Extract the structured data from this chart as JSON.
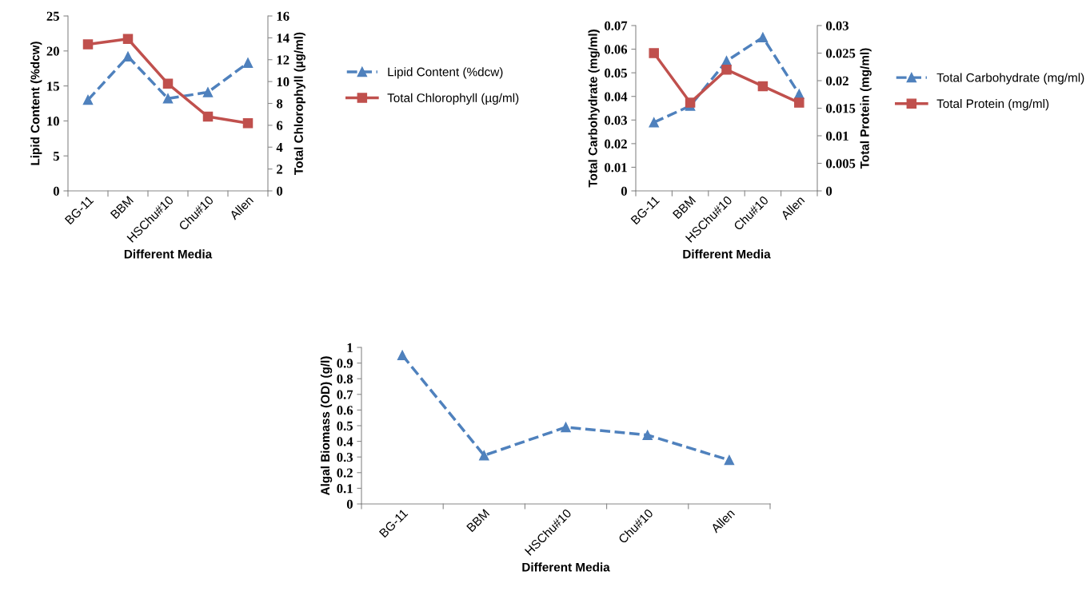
{
  "chart_data": [
    {
      "type": "line",
      "categories": [
        "BG-11",
        "BBM",
        "HSChu#10",
        "Chu#10",
        "Allen"
      ],
      "xlabel": "Different Media",
      "ylabel": "Lipid Content (%dcw)",
      "y2label": "Total Chlorophyll (µg/ml)",
      "ylim": [
        0,
        25
      ],
      "yticks": [
        0,
        5,
        10,
        15,
        20,
        25
      ],
      "y2lim": [
        0,
        16
      ],
      "y2ticks": [
        0,
        2,
        4,
        6,
        8,
        10,
        12,
        14,
        16
      ],
      "legend": "right",
      "grid": false,
      "series": [
        {
          "name": "Lipid Content (%dcw)",
          "color": "#4f81bd",
          "marker": "triangle",
          "line_style": "dashed",
          "values": [
            13,
            19.2,
            13.2,
            14.1,
            18.3
          ]
        },
        {
          "name": "Total Chlorophyll (µg/ml)",
          "color": "#c0504d",
          "marker": "square",
          "line_style": "solid",
          "axis": "y2",
          "values": [
            13.4,
            13.9,
            9.8,
            6.8,
            6.2
          ]
        }
      ]
    },
    {
      "type": "line",
      "categories": [
        "BG-11",
        "BBM",
        "HSChu#10",
        "Chu#10",
        "Allen"
      ],
      "xlabel": "Different Media",
      "ylabel": "Total Carbohydrate (mg/ml)",
      "y2label": "Total Protein (mg/ml)",
      "ylim": [
        0,
        0.07
      ],
      "yticks": [
        0,
        0.01,
        0.02,
        0.03,
        0.04,
        0.05,
        0.06,
        0.07
      ],
      "y2lim": [
        0,
        0.03
      ],
      "y2ticks": [
        0,
        0.005,
        0.01,
        0.015,
        0.02,
        0.025,
        0.03
      ],
      "legend": "right",
      "grid": false,
      "series": [
        {
          "name": "Total Carbohydrate (mg/ml)",
          "color": "#4f81bd",
          "marker": "triangle",
          "line_style": "dashed",
          "values": [
            0.029,
            0.036,
            0.055,
            0.065,
            0.041
          ]
        },
        {
          "name": "Total Protein (mg/ml)",
          "color": "#c0504d",
          "marker": "square",
          "line_style": "solid",
          "axis": "y2",
          "values": [
            0.025,
            0.016,
            0.022,
            0.019,
            0.016
          ]
        }
      ]
    },
    {
      "type": "line",
      "categories": [
        "BG-11",
        "BBM",
        "HSChu#10",
        "Chu#10",
        "Allen"
      ],
      "xlabel": "Different Media",
      "ylabel": "Algal Biomass (OD) (g/l)",
      "ylim": [
        0,
        1
      ],
      "yticks": [
        0,
        0.1,
        0.2,
        0.3,
        0.4,
        0.5,
        0.6,
        0.7,
        0.8,
        0.9,
        1
      ],
      "legend": false,
      "grid": false,
      "series": [
        {
          "color": "#4f81bd",
          "marker": "triangle",
          "line_style": "dashed",
          "values": [
            0.95,
            0.31,
            0.49,
            0.44,
            0.28
          ]
        }
      ]
    }
  ]
}
